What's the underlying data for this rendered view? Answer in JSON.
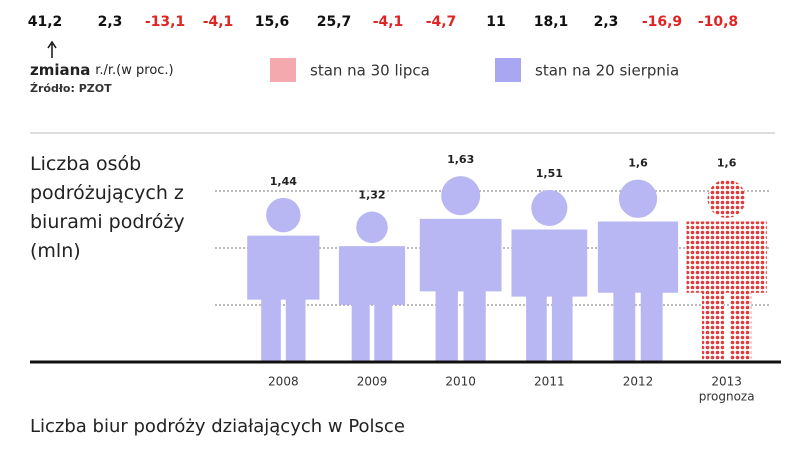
{
  "change_row": {
    "labels": [
      "41,2",
      "2,3",
      "-13,1",
      "-4,1",
      "15,6",
      "25,7",
      "-4,1",
      "-4,7",
      "11",
      "18,1",
      "2,3",
      "-16,9",
      "-10,8"
    ],
    "color_positive": "#111111",
    "color_negative": "#e02424"
  },
  "change_caption": {
    "bold": "zmiana",
    "rest": "r./r.(w proc.)"
  },
  "source": "Źródło: PZOT",
  "legend": [
    {
      "name": "stan na 30 lipca",
      "color": "#f4a9ae"
    },
    {
      "name": "stan na 20 sierpnia",
      "color": "#a9a6f2"
    }
  ],
  "chart_data": {
    "type": "pictogram",
    "title": "Liczba osób podróżujących z biurami podróży (mln)",
    "categories": [
      "2008",
      "2009",
      "2010",
      "2011",
      "2012",
      "2013"
    ],
    "values": [
      1.44,
      1.32,
      1.63,
      1.51,
      1.6,
      1.6
    ],
    "value_labels": [
      "1,44",
      "1,32",
      "1,63",
      "1,51",
      "1,6",
      "1,6"
    ],
    "color": "#b9b7f3",
    "forecast_color": "#e43a3a",
    "forecast_label": "prognoza",
    "ylim": [
      0,
      2
    ],
    "grid_values": [
      0.5,
      1,
      1.5
    ]
  },
  "footer": "Liczba biur podróży działających w Polsce"
}
